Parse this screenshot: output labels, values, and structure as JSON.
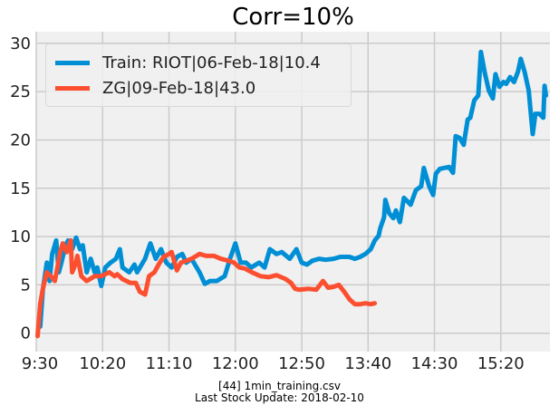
{
  "chart_data": {
    "type": "line",
    "title": "Corr=10%",
    "xlabel": "",
    "ylabel": "",
    "xlim": [
      "9:30",
      "15:57"
    ],
    "ylim": [
      -1.9,
      31.2
    ],
    "x_ticks": [
      "9:30",
      "10:20",
      "11:10",
      "12:00",
      "12:50",
      "13:40",
      "14:30",
      "15:20"
    ],
    "y_ticks": [
      0,
      5,
      10,
      15,
      20,
      25,
      30
    ],
    "grid": true,
    "legend_placement": "top-left",
    "series": [
      {
        "name": "Train: RIOT|06-Feb-18|10.4",
        "color": "#008fd5",
        "points": [
          [
            "9:33",
            0.7
          ],
          [
            "9:35",
            4.5
          ],
          [
            "9:38",
            7.3
          ],
          [
            "9:40",
            5.4
          ],
          [
            "9:42",
            8.2
          ],
          [
            "9:45",
            9.6
          ],
          [
            "9:47",
            6.3
          ],
          [
            "9:49",
            7.3
          ],
          [
            "9:52",
            9.1
          ],
          [
            "9:54",
            9.6
          ],
          [
            "9:57",
            8.7
          ],
          [
            "10:00",
            9.9
          ],
          [
            "10:03",
            8.7
          ],
          [
            "10:05",
            9.1
          ],
          [
            "10:08",
            6.3
          ],
          [
            "10:11",
            7.7
          ],
          [
            "10:14",
            6.3
          ],
          [
            "10:16",
            6.8
          ],
          [
            "10:19",
            4.9
          ],
          [
            "10:22",
            6.8
          ],
          [
            "10:26",
            7.3
          ],
          [
            "10:30",
            7.7
          ],
          [
            "10:33",
            8.7
          ],
          [
            "10:35",
            6.8
          ],
          [
            "10:40",
            6.3
          ],
          [
            "10:44",
            7.1
          ],
          [
            "10:46",
            6.3
          ],
          [
            "10:52",
            7.7
          ],
          [
            "10:56",
            9.3
          ],
          [
            "11:00",
            7.7
          ],
          [
            "11:04",
            8.7
          ],
          [
            "11:08",
            7.3
          ],
          [
            "11:12",
            6.8
          ],
          [
            "11:16",
            7.9
          ],
          [
            "11:20",
            8.2
          ],
          [
            "11:23",
            7.3
          ],
          [
            "11:27",
            7.7
          ],
          [
            "11:33",
            6.3
          ],
          [
            "11:37",
            5.1
          ],
          [
            "11:41",
            5.4
          ],
          [
            "11:46",
            5.4
          ],
          [
            "11:52",
            5.9
          ],
          [
            "11:56",
            7.7
          ],
          [
            "12:00",
            9.3
          ],
          [
            "12:04",
            7.3
          ],
          [
            "12:08",
            7.3
          ],
          [
            "12:12",
            6.8
          ],
          [
            "12:18",
            7.3
          ],
          [
            "12:22",
            6.8
          ],
          [
            "12:26",
            8.7
          ],
          [
            "12:31",
            8.2
          ],
          [
            "12:35",
            8.4
          ],
          [
            "12:41",
            7.7
          ],
          [
            "12:46",
            8.7
          ],
          [
            "12:50",
            7.3
          ],
          [
            "12:54",
            7.1
          ],
          [
            "12:58",
            7.5
          ],
          [
            "13:03",
            7.7
          ],
          [
            "13:08",
            7.6
          ],
          [
            "13:14",
            7.7
          ],
          [
            "13:19",
            7.9
          ],
          [
            "13:26",
            7.9
          ],
          [
            "13:30",
            7.7
          ],
          [
            "13:34",
            7.9
          ],
          [
            "13:38",
            8.2
          ],
          [
            "13:42",
            8.7
          ],
          [
            "13:45",
            9.6
          ],
          [
            "13:48",
            10.1
          ],
          [
            "13:49",
            10.8
          ],
          [
            "13:52",
            12.0
          ],
          [
            "13:53",
            13.8
          ],
          [
            "13:56",
            12.4
          ],
          [
            "13:59",
            11.9
          ],
          [
            "14:01",
            12.7
          ],
          [
            "14:04",
            11.5
          ],
          [
            "14:07",
            14.0
          ],
          [
            "14:10",
            13.6
          ],
          [
            "14:12",
            13.3
          ],
          [
            "14:16",
            14.8
          ],
          [
            "14:20",
            15.2
          ],
          [
            "14:22",
            17.1
          ],
          [
            "14:26",
            15.2
          ],
          [
            "14:29",
            14.3
          ],
          [
            "14:31",
            16.5
          ],
          [
            "14:34",
            17.0
          ],
          [
            "14:37",
            17.1
          ],
          [
            "14:41",
            17.2
          ],
          [
            "14:44",
            16.6
          ],
          [
            "14:46",
            20.4
          ],
          [
            "14:49",
            20.2
          ],
          [
            "14:52",
            19.5
          ],
          [
            "14:55",
            22.1
          ],
          [
            "14:57",
            22.3
          ],
          [
            "15:00",
            24.1
          ],
          [
            "15:03",
            24.6
          ],
          [
            "15:05",
            29.1
          ],
          [
            "15:08",
            26.9
          ],
          [
            "15:11",
            25.1
          ],
          [
            "15:14",
            24.3
          ],
          [
            "15:16",
            26.8
          ],
          [
            "15:19",
            25.5
          ],
          [
            "15:22",
            26.0
          ],
          [
            "15:24",
            25.8
          ],
          [
            "15:27",
            26.5
          ],
          [
            "15:30",
            26.0
          ],
          [
            "15:33",
            27.1
          ],
          [
            "15:35",
            28.4
          ],
          [
            "15:38",
            27.0
          ],
          [
            "15:41",
            25.1
          ],
          [
            "15:44",
            20.6
          ],
          [
            "15:46",
            22.7
          ],
          [
            "15:49",
            22.7
          ],
          [
            "15:52",
            22.3
          ],
          [
            "15:53",
            25.6
          ],
          [
            "15:54",
            24.6
          ]
        ]
      },
      {
        "name": "ZG|09-Feb-18|43.0",
        "color": "#fc4f30",
        "points": [
          [
            "9:31",
            -0.3
          ],
          [
            "9:33",
            3.0
          ],
          [
            "9:35",
            4.6
          ],
          [
            "9:38",
            6.3
          ],
          [
            "9:41",
            5.9
          ],
          [
            "9:44",
            5.4
          ],
          [
            "9:46",
            6.8
          ],
          [
            "9:48",
            8.4
          ],
          [
            "9:50",
            9.3
          ],
          [
            "9:53",
            8.4
          ],
          [
            "9:56",
            9.6
          ],
          [
            "9:57",
            6.3
          ],
          [
            "10:00",
            7.3
          ],
          [
            "10:01",
            8.0
          ],
          [
            "10:04",
            5.9
          ],
          [
            "10:08",
            5.4
          ],
          [
            "10:14",
            5.9
          ],
          [
            "10:19",
            5.9
          ],
          [
            "10:25",
            6.3
          ],
          [
            "10:29",
            5.9
          ],
          [
            "10:31",
            6.1
          ],
          [
            "10:35",
            5.6
          ],
          [
            "10:41",
            5.2
          ],
          [
            "10:45",
            5.2
          ],
          [
            "10:48",
            4.3
          ],
          [
            "10:52",
            4.0
          ],
          [
            "10:55",
            5.9
          ],
          [
            "10:59",
            6.3
          ],
          [
            "11:03",
            7.3
          ],
          [
            "11:06",
            7.9
          ],
          [
            "11:10",
            8.2
          ],
          [
            "11:12",
            8.4
          ],
          [
            "11:16",
            6.5
          ],
          [
            "11:19",
            7.3
          ],
          [
            "11:23",
            7.5
          ],
          [
            "11:27",
            7.7
          ],
          [
            "11:33",
            8.2
          ],
          [
            "11:38",
            8.0
          ],
          [
            "11:44",
            8.0
          ],
          [
            "11:49",
            7.7
          ],
          [
            "11:55",
            7.5
          ],
          [
            "11:59",
            7.3
          ],
          [
            "12:03",
            6.8
          ],
          [
            "12:07",
            6.7
          ],
          [
            "12:14",
            6.2
          ],
          [
            "12:19",
            5.9
          ],
          [
            "12:25",
            5.8
          ],
          [
            "12:31",
            6.0
          ],
          [
            "12:38",
            5.6
          ],
          [
            "12:42",
            5.2
          ],
          [
            "12:45",
            4.6
          ],
          [
            "12:48",
            4.5
          ],
          [
            "12:55",
            4.6
          ],
          [
            "13:01",
            4.5
          ],
          [
            "13:06",
            5.4
          ],
          [
            "13:10",
            4.7
          ],
          [
            "13:14",
            4.8
          ],
          [
            "13:18",
            5.0
          ],
          [
            "13:22",
            4.3
          ],
          [
            "13:26",
            3.5
          ],
          [
            "13:30",
            3.0
          ],
          [
            "13:34",
            3.0
          ],
          [
            "13:38",
            3.1
          ],
          [
            "13:42",
            3.0
          ],
          [
            "13:45",
            3.1
          ]
        ]
      }
    ]
  },
  "footer": {
    "line1": "[44] 1min_training.csv",
    "line2": "Last Stock Update: 2018-02-10"
  },
  "colors": {
    "plot_background": "#f0f0f0",
    "grid": "#cbcbcb"
  }
}
